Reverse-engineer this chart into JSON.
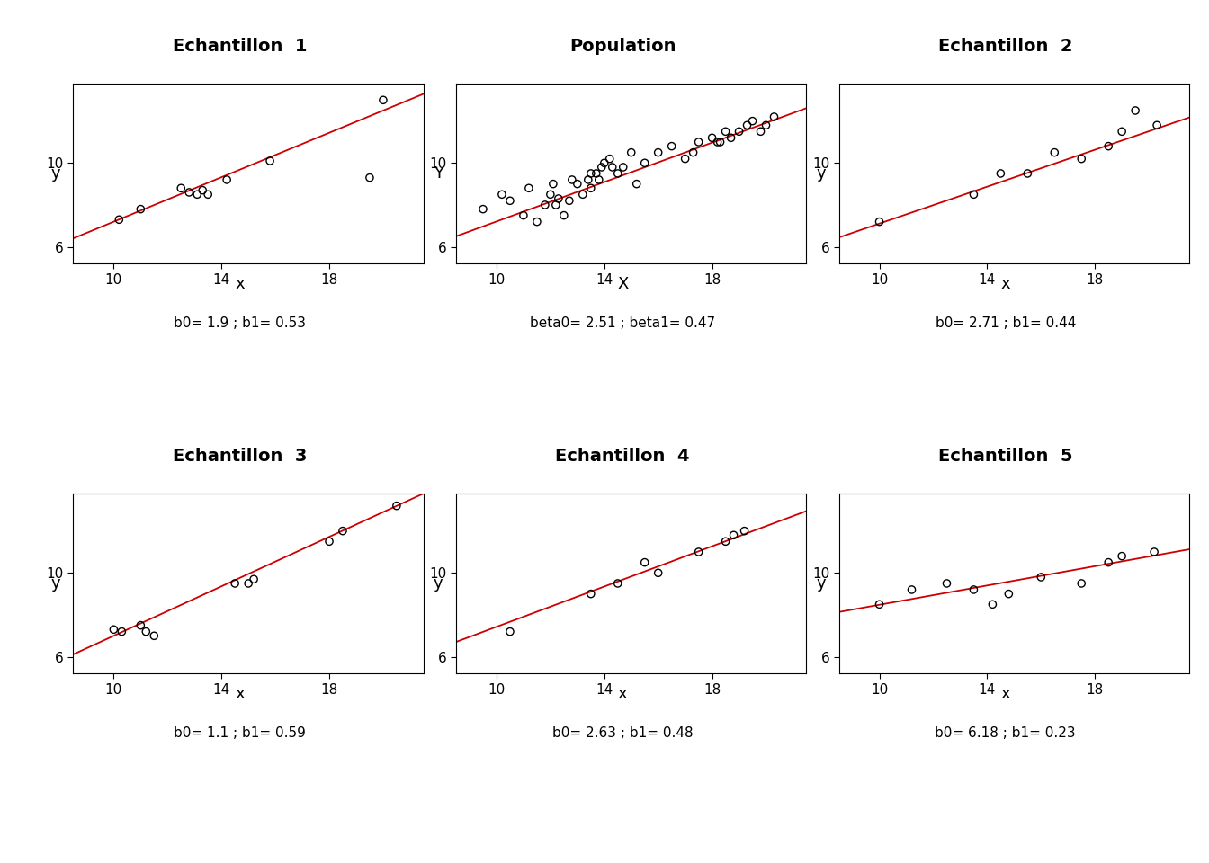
{
  "panels": [
    {
      "title": "Echantillon  1",
      "xlabel": "x",
      "ylabel": "y",
      "b0": 1.9,
      "b1": 0.53,
      "label": "b0= 1.9 ; b1= 0.53",
      "x": [
        10.2,
        11.0,
        12.5,
        12.8,
        13.1,
        13.3,
        13.5,
        14.2,
        15.8,
        19.5,
        20.0
      ],
      "y": [
        7.3,
        7.8,
        8.8,
        8.6,
        8.5,
        8.7,
        8.5,
        9.2,
        10.1,
        9.3,
        13.0
      ],
      "xlim": [
        8.5,
        21.5
      ],
      "ylim": [
        5.2,
        13.8
      ],
      "xticks": [
        10,
        14,
        18
      ],
      "yticks": [
        6,
        10
      ]
    },
    {
      "title": "Population",
      "xlabel": "X",
      "ylabel": "Y",
      "b0": 2.51,
      "b1": 0.47,
      "label": "beta0= 2.51 ; beta1= 0.47",
      "x": [
        9.5,
        10.2,
        10.5,
        11.0,
        11.2,
        11.5,
        11.8,
        12.0,
        12.1,
        12.2,
        12.3,
        12.5,
        12.7,
        12.8,
        13.0,
        13.2,
        13.4,
        13.5,
        13.5,
        13.7,
        13.8,
        13.9,
        14.0,
        14.2,
        14.3,
        14.5,
        14.7,
        15.0,
        15.2,
        15.5,
        16.0,
        16.5,
        17.0,
        17.3,
        17.5,
        18.0,
        18.2,
        18.3,
        18.5,
        18.7,
        19.0,
        19.3,
        19.5,
        19.8,
        20.0,
        20.3
      ],
      "y": [
        7.8,
        8.5,
        8.2,
        7.5,
        8.8,
        7.2,
        8.0,
        8.5,
        9.0,
        8.0,
        8.3,
        7.5,
        8.2,
        9.2,
        9.0,
        8.5,
        9.2,
        8.8,
        9.5,
        9.5,
        9.2,
        9.8,
        10.0,
        10.2,
        9.8,
        9.5,
        9.8,
        10.5,
        9.0,
        10.0,
        10.5,
        10.8,
        10.2,
        10.5,
        11.0,
        11.2,
        11.0,
        11.0,
        11.5,
        11.2,
        11.5,
        11.8,
        12.0,
        11.5,
        11.8,
        12.2
      ],
      "xlim": [
        8.5,
        21.5
      ],
      "ylim": [
        5.2,
        13.8
      ],
      "xticks": [
        10,
        14,
        18
      ],
      "yticks": [
        6,
        10
      ]
    },
    {
      "title": "Echantillon  2",
      "xlabel": "x",
      "ylabel": "y",
      "b0": 2.71,
      "b1": 0.44,
      "label": "b0= 2.71 ; b1= 0.44",
      "x": [
        10.0,
        13.5,
        14.5,
        15.5,
        16.5,
        17.5,
        18.5,
        19.0,
        19.5,
        20.3
      ],
      "y": [
        7.2,
        8.5,
        9.5,
        9.5,
        10.5,
        10.2,
        10.8,
        11.5,
        12.5,
        11.8
      ],
      "xlim": [
        8.5,
        21.5
      ],
      "ylim": [
        5.2,
        13.8
      ],
      "xticks": [
        10,
        14,
        18
      ],
      "yticks": [
        6,
        10
      ]
    },
    {
      "title": "Echantillon  3",
      "xlabel": "x",
      "ylabel": "y",
      "b0": 1.1,
      "b1": 0.59,
      "label": "b0= 1.1 ; b1= 0.59",
      "x": [
        10.0,
        10.3,
        11.0,
        11.2,
        11.5,
        14.5,
        15.0,
        15.2,
        18.0,
        18.5,
        20.5
      ],
      "y": [
        7.3,
        7.2,
        7.5,
        7.2,
        7.0,
        9.5,
        9.5,
        9.7,
        11.5,
        12.0,
        13.2
      ],
      "xlim": [
        8.5,
        21.5
      ],
      "ylim": [
        5.2,
        13.8
      ],
      "xticks": [
        10,
        14,
        18
      ],
      "yticks": [
        6,
        10
      ]
    },
    {
      "title": "Echantillon  4",
      "xlabel": "x",
      "ylabel": "y",
      "b0": 2.63,
      "b1": 0.48,
      "label": "b0= 2.63 ; b1= 0.48",
      "x": [
        10.5,
        13.5,
        14.5,
        15.5,
        16.0,
        17.5,
        18.5,
        18.8,
        19.2
      ],
      "y": [
        7.2,
        9.0,
        9.5,
        10.5,
        10.0,
        11.0,
        11.5,
        11.8,
        12.0
      ],
      "xlim": [
        8.5,
        21.5
      ],
      "ylim": [
        5.2,
        13.8
      ],
      "xticks": [
        10,
        14,
        18
      ],
      "yticks": [
        6,
        10
      ]
    },
    {
      "title": "Echantillon  5",
      "xlabel": "x",
      "ylabel": "y",
      "b0": 6.18,
      "b1": 0.23,
      "label": "b0= 6.18 ; b1= 0.23",
      "x": [
        10.0,
        11.2,
        12.5,
        13.5,
        14.2,
        14.8,
        16.0,
        17.5,
        18.5,
        19.0,
        20.2
      ],
      "y": [
        8.5,
        9.2,
        9.5,
        9.2,
        8.5,
        9.0,
        9.8,
        9.5,
        10.5,
        10.8,
        11.0
      ],
      "xlim": [
        8.5,
        21.5
      ],
      "ylim": [
        5.2,
        13.8
      ],
      "xticks": [
        10,
        14,
        18
      ],
      "yticks": [
        6,
        10
      ]
    }
  ],
  "bg_color": "#ffffff",
  "line_color": "#cc0000",
  "dot_facecolor": "none",
  "dot_edgecolor": "#000000",
  "dot_size": 35,
  "dot_linewidth": 1.0,
  "title_fontsize": 14,
  "axis_label_fontsize": 13,
  "tick_fontsize": 11,
  "annotation_fontsize": 11
}
